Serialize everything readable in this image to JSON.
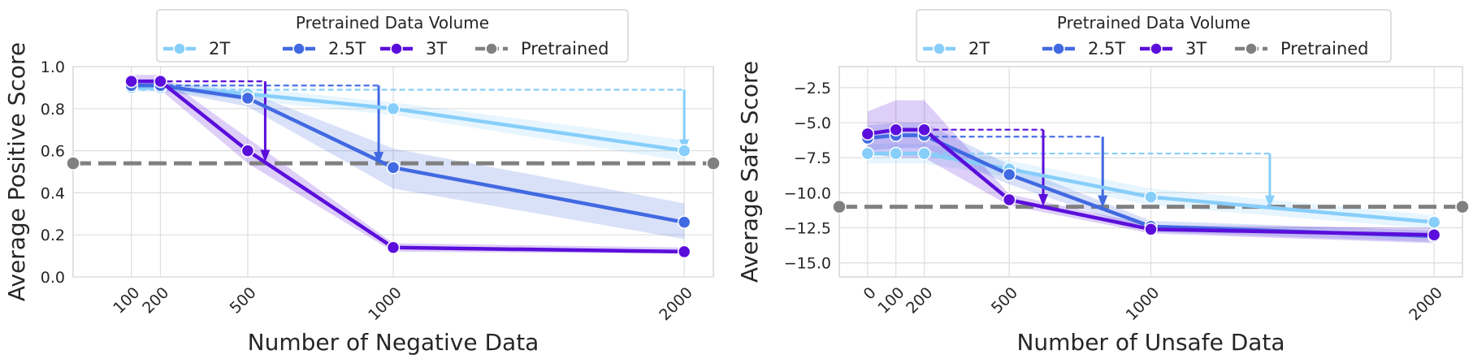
{
  "chart_data": [
    {
      "type": "line",
      "title": "",
      "xlabel": "Number of Negative Data",
      "ylabel": "Average Positive Score",
      "x": [
        100,
        200,
        500,
        1000,
        2000
      ],
      "xticks": [
        100,
        200,
        500,
        1000,
        2000
      ],
      "xlim": [
        -100,
        2100
      ],
      "ylim": [
        0.0,
        1.0
      ],
      "yticks": [
        "0.0",
        "0.2",
        "0.4",
        "0.6",
        "0.8",
        "1.0"
      ],
      "ytick_values": [
        0.0,
        0.2,
        0.4,
        0.6,
        0.8,
        1.0
      ],
      "grid": true,
      "legend": {
        "title": "Pretrained Data Volume",
        "location": "upper center",
        "entries": [
          "2T",
          "2.5T",
          "3T",
          "Pretrained"
        ]
      },
      "series": [
        {
          "name": "2T",
          "color": "#87CEFA",
          "values": [
            0.9,
            0.9,
            0.87,
            0.8,
            0.6
          ],
          "band_low": [
            0.88,
            0.88,
            0.84,
            0.77,
            0.55
          ],
          "band_high": [
            0.92,
            0.92,
            0.9,
            0.83,
            0.65
          ]
        },
        {
          "name": "2.5T",
          "color": "#4169E1",
          "values": [
            0.91,
            0.91,
            0.85,
            0.52,
            0.26
          ],
          "band_low": [
            0.89,
            0.89,
            0.81,
            0.42,
            0.18
          ],
          "band_high": [
            0.93,
            0.93,
            0.88,
            0.61,
            0.35
          ]
        },
        {
          "name": "3T",
          "color": "#5B0EDB",
          "values": [
            0.93,
            0.93,
            0.6,
            0.14,
            0.12
          ],
          "band_low": [
            0.89,
            0.89,
            0.54,
            0.12,
            0.11
          ],
          "band_high": [
            0.96,
            0.96,
            0.66,
            0.16,
            0.14
          ]
        }
      ],
      "baseline": {
        "name": "Pretrained",
        "color": "#808080",
        "value": 0.54
      },
      "annotations": [
        {
          "series": "2T",
          "y_from": 0.89,
          "y_to": 0.6,
          "x_start": 100,
          "x_end": 2000
        },
        {
          "series": "2.5T",
          "y_from": 0.91,
          "y_to": 0.54,
          "x_start": 100,
          "x_end": 950
        },
        {
          "series": "3T",
          "y_from": 0.93,
          "y_to": 0.55,
          "x_start": 100,
          "x_end": 560
        }
      ]
    },
    {
      "type": "line",
      "title": "",
      "xlabel": "Number of Unsafe Data",
      "ylabel": "Average Safe Score",
      "x": [
        0,
        100,
        200,
        500,
        1000,
        2000
      ],
      "xticks": [
        0,
        100,
        200,
        500,
        1000,
        2000
      ],
      "xlim": [
        -100,
        2100
      ],
      "ylim": [
        -16.0,
        -1.0
      ],
      "yticks": [
        "−15.0",
        "−12.5",
        "−10.0",
        "−7.5",
        "−5.0",
        "−2.5"
      ],
      "ytick_values": [
        -15.0,
        -12.5,
        -10.0,
        -7.5,
        -5.0,
        -2.5
      ],
      "grid": true,
      "legend": {
        "title": "Pretrained Data Volume",
        "location": "upper center",
        "entries": [
          "2T",
          "2.5T",
          "3T",
          "Pretrained"
        ]
      },
      "series": [
        {
          "name": "2T",
          "color": "#87CEFA",
          "values": [
            -7.2,
            -7.2,
            -7.2,
            -8.3,
            -10.3,
            -12.1
          ],
          "band_low": [
            -7.9,
            -7.9,
            -7.9,
            -8.9,
            -10.9,
            -12.6
          ],
          "band_high": [
            -6.5,
            -6.5,
            -6.5,
            -7.7,
            -9.7,
            -11.6
          ]
        },
        {
          "name": "2.5T",
          "color": "#4169E1",
          "values": [
            -6.1,
            -5.9,
            -5.9,
            -8.7,
            -12.4,
            -13.1
          ],
          "band_low": [
            -7.0,
            -6.8,
            -6.8,
            -9.4,
            -12.8,
            -13.5
          ],
          "band_high": [
            -5.2,
            -5.0,
            -5.0,
            -8.0,
            -12.0,
            -12.7
          ]
        },
        {
          "name": "3T",
          "color": "#5B0EDB",
          "values": [
            -5.8,
            -5.5,
            -5.5,
            -10.5,
            -12.6,
            -13.0
          ],
          "band_low": [
            -7.2,
            -7.5,
            -7.5,
            -10.9,
            -12.9,
            -13.6
          ],
          "band_high": [
            -4.2,
            -3.4,
            -3.4,
            -10.1,
            -12.3,
            -12.5
          ]
        }
      ],
      "baseline": {
        "name": "Pretrained",
        "color": "#808080",
        "value": -11.0
      },
      "annotations": [
        {
          "series": "2T",
          "y_from": -7.2,
          "y_to": -11.0,
          "x_start": 200,
          "x_end": 1420
        },
        {
          "series": "2.5T",
          "y_from": -6.0,
          "y_to": -11.0,
          "x_start": 200,
          "x_end": 830
        },
        {
          "series": "3T",
          "y_from": -5.5,
          "y_to": -10.9,
          "x_start": 200,
          "x_end": 620
        }
      ]
    }
  ]
}
